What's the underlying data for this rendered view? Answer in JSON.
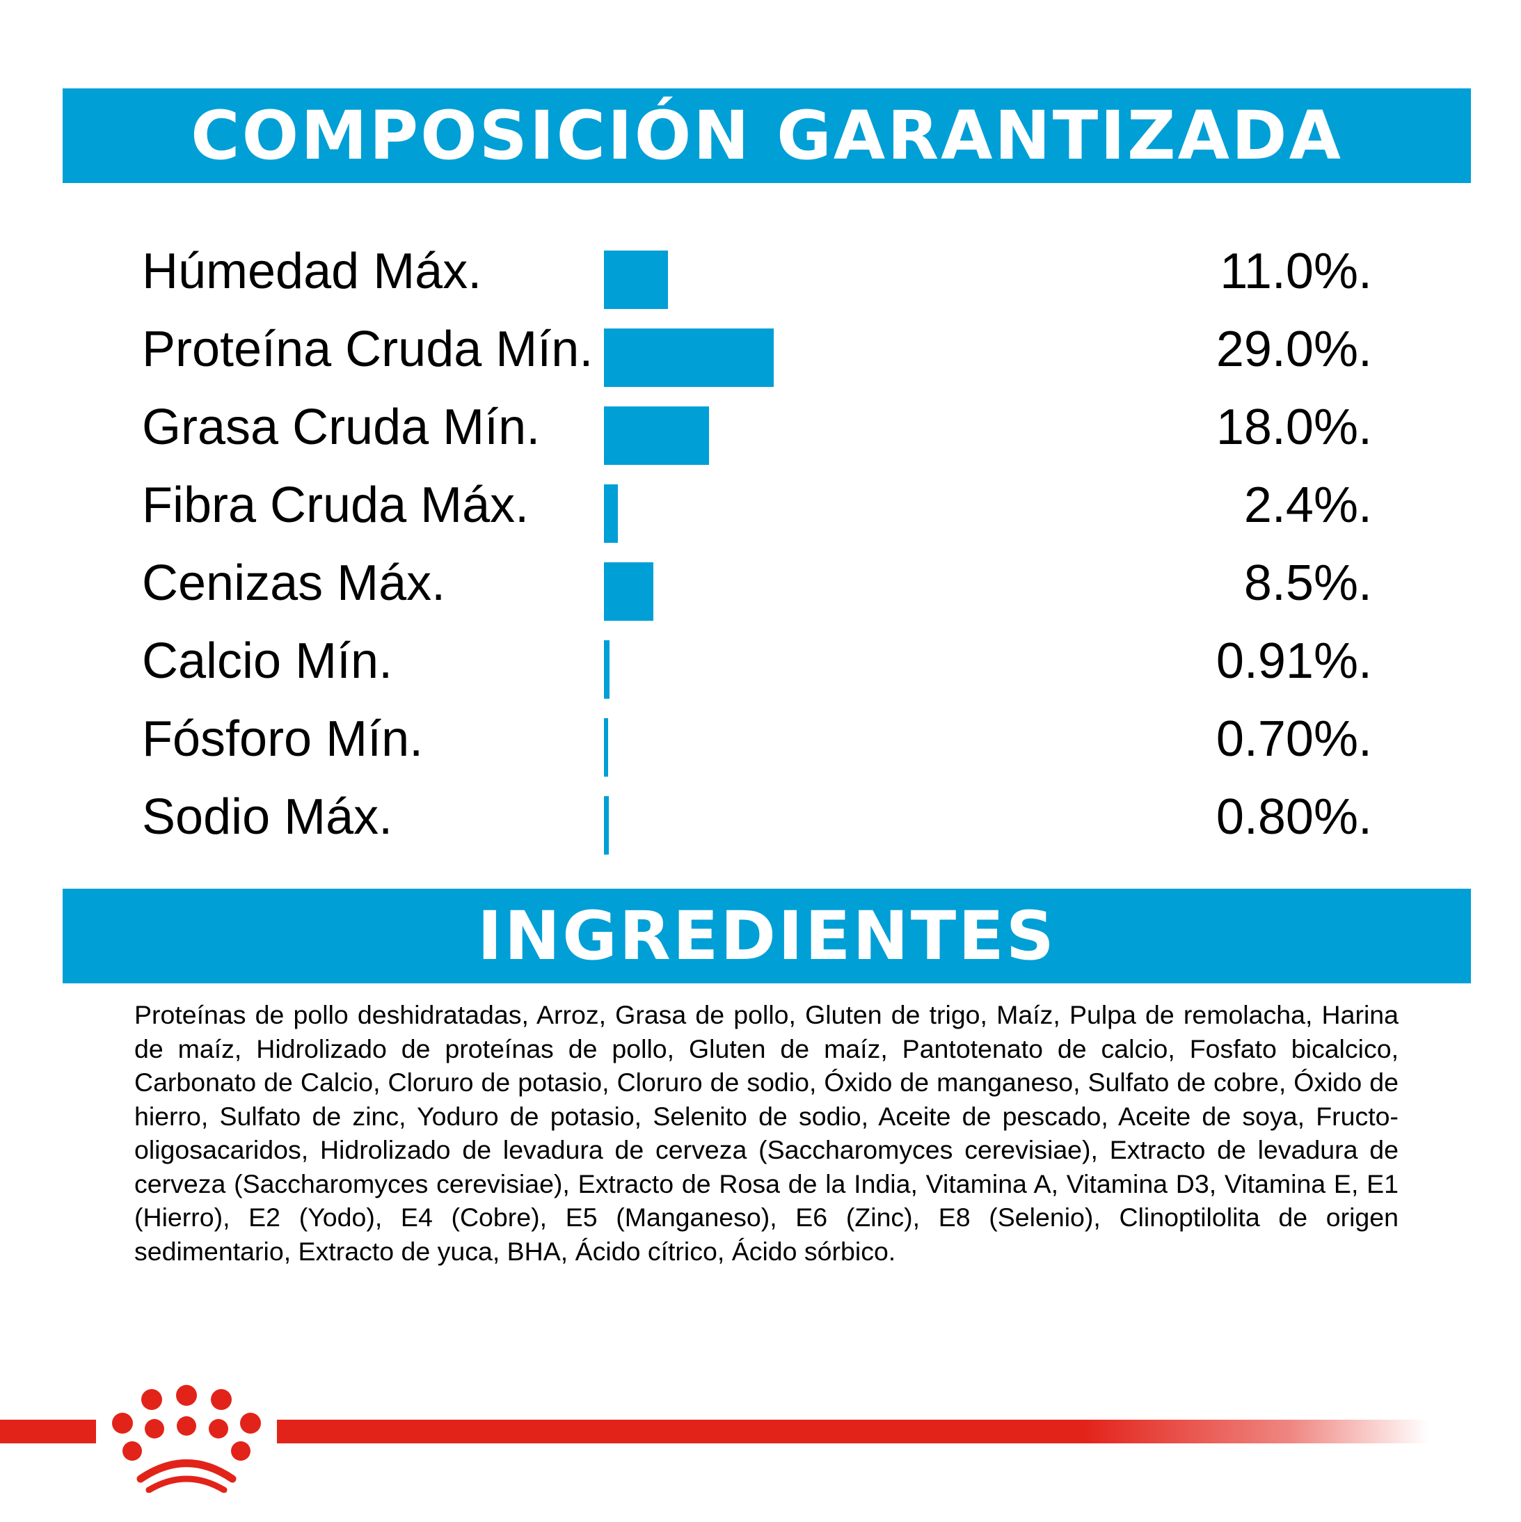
{
  "composition": {
    "title": "COMPOSICIÓN GARANTIZADA",
    "rows": [
      {
        "label": "Húmedad Máx.",
        "value": "11.0%.",
        "amount": 11.0
      },
      {
        "label": "Proteína Cruda Mín.",
        "value": "29.0%.",
        "amount": 29.0
      },
      {
        "label": "Grasa Cruda Mín.",
        "value": "18.0%.",
        "amount": 18.0
      },
      {
        "label": "Fibra Cruda Máx.",
        "value": "2.4%.",
        "amount": 2.4
      },
      {
        "label": "Cenizas Máx.",
        "value": "8.5%.",
        "amount": 8.5
      },
      {
        "label": "Calcio Mín.",
        "value": "0.91%.",
        "amount": 0.91
      },
      {
        "label": "Fósforo Mín.",
        "value": "0.70%.",
        "amount": 0.7
      },
      {
        "label": "Sodio Máx.",
        "value": "0.80%.",
        "amount": 0.8
      }
    ]
  },
  "ingredients": {
    "title": "INGREDIENTES",
    "text": "Proteínas de pollo deshidratadas, Arroz, Grasa de pollo, Gluten de trigo, Maíz, Pulpa de remolacha, Harina de maíz, Hidrolizado de proteínas de pollo, Gluten de maíz, Pantotenato de calcio, Fosfato bicalcico, Carbonato de Calcio, Cloruro de potasio, Cloruro de sodio, Óxido de manganeso, Sulfato de cobre, Óxido de hierro, Sulfato de zinc, Yoduro de potasio, Selenito de sodio, Aceite de pescado, Aceite de soya, Fructo-oligosacaridos, Hidrolizado de levadura de cerveza (Saccharomyces cerevisiae), Extracto de levadura de cerveza (Saccharomyces cerevisiae), Extracto de Rosa de la India, Vitamina A, Vitamina D3, Vitamina E, E1 (Hierro), E2 (Yodo), E4 (Cobre), E5 (Manganeso), E6 (Zinc), E8 (Selenio), Clinoptilolita de origen sedimentario, Extracto de yuca, BHA, Ácido cítrico, Ácido sórbico."
  },
  "colors": {
    "header_blue": "#009fd6",
    "brand_red": "#e2231a"
  },
  "icons": {
    "logo": "royal-canin-crown-icon"
  }
}
